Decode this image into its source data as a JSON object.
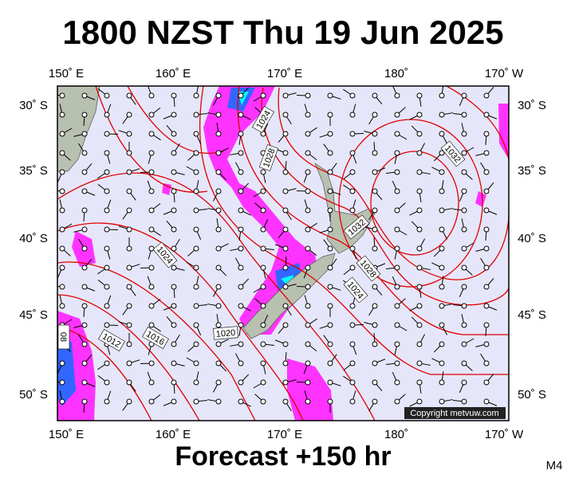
{
  "header": {
    "title": "1800 NZST Thu 19 Jun 2025"
  },
  "map": {
    "lon_labels": [
      "150˚ E",
      "160˚ E",
      "170˚ E",
      "180˚",
      "170˚ W"
    ],
    "lat_labels": [
      "30˚ S",
      "35˚ S",
      "40˚ S",
      "45˚ S",
      "50˚ S"
    ],
    "isobar_labels": [
      "1024",
      "1028",
      "1032",
      "1032",
      "1028",
      "1024",
      "1024",
      "1020",
      "1016",
      "1012",
      "08"
    ],
    "copyright": "Copyright metvuw.com"
  },
  "footer": {
    "forecast": "Forecast +150 hr",
    "code": "M4"
  }
}
